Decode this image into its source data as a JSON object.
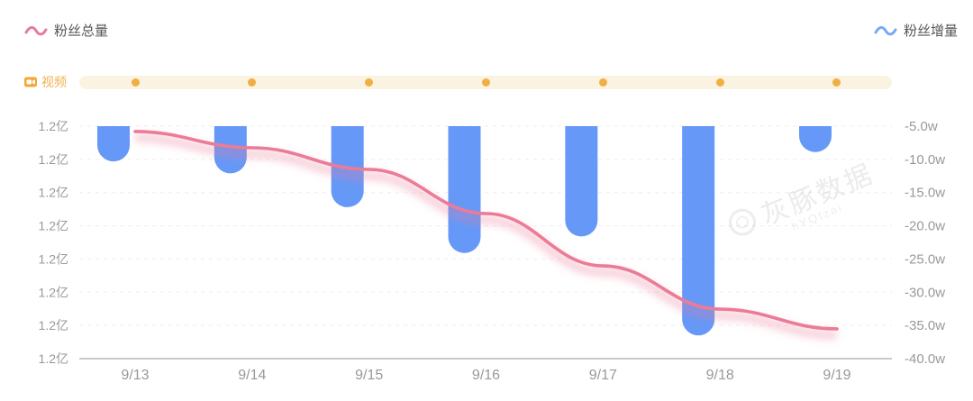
{
  "legend": {
    "total_fans": {
      "label": "粉丝总量"
    },
    "fans_increment": {
      "label": "粉丝增量"
    }
  },
  "video_row": {
    "label": "视频"
  },
  "watermark": {
    "cn": "灰豚数据",
    "en": "hYQtzai"
  },
  "colors": {
    "bar_blue": "#6598f7",
    "line_pink": "#ec7b97",
    "line_glow": "rgba(236,123,151,0.38)",
    "legend_pink": "#e87b98",
    "legend_blue": "#7aa9f0",
    "band_bg": "#fbf3e1",
    "band_dot": "#eeb041",
    "video_icon": "#f3a737",
    "video_label": "#f0b152",
    "axis_text": "#999999",
    "legend_text": "#555555",
    "axis_line": "#b8b8b8",
    "grid_line": "#ededed"
  },
  "chart_data": {
    "type": "combo",
    "categories": [
      "9/13",
      "9/14",
      "9/15",
      "9/16",
      "9/17",
      "9/18",
      "9/19"
    ],
    "series": [
      {
        "name": "粉丝增量",
        "type": "bar",
        "y_axis": "right",
        "unit": "w",
        "values": [
          -10.3,
          -12.1,
          -17.2,
          -24.1,
          -21.6,
          -36.5,
          -8.9
        ]
      },
      {
        "name": "粉丝总量",
        "type": "line",
        "y_axis": "left",
        "unit": "亿",
        "tick_label_shown_each_day": "1.2亿",
        "plot_fraction_from_top": [
          0.023,
          0.093,
          0.186,
          0.376,
          0.601,
          0.787,
          0.872
        ]
      }
    ],
    "left_axis": {
      "ticks": [
        "1.2亿",
        "1.2亿",
        "1.2亿",
        "1.2亿",
        "1.2亿",
        "1.2亿",
        "1.2亿",
        "1.2亿"
      ]
    },
    "right_axis": {
      "ticks": [
        "-5.0w",
        "-10.0w",
        "-15.0w",
        "-20.0w",
        "-25.0w",
        "-30.0w",
        "-35.0w",
        "-40.0w"
      ],
      "min": -40,
      "max": -5
    },
    "video_markers_count": 7,
    "legend_position": "top",
    "grid": "horizontal-dashed"
  }
}
